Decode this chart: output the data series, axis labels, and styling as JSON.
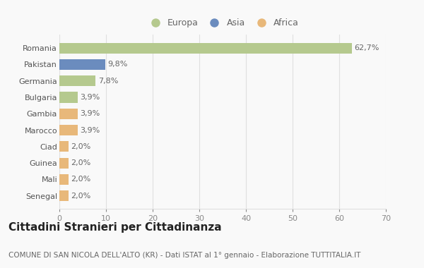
{
  "categories": [
    "Romania",
    "Pakistan",
    "Germania",
    "Bulgaria",
    "Gambia",
    "Marocco",
    "Ciad",
    "Guinea",
    "Mali",
    "Senegal"
  ],
  "values": [
    62.7,
    9.8,
    7.8,
    3.9,
    3.9,
    3.9,
    2.0,
    2.0,
    2.0,
    2.0
  ],
  "labels": [
    "62,7%",
    "9,8%",
    "7,8%",
    "3,9%",
    "3,9%",
    "3,9%",
    "2,0%",
    "2,0%",
    "2,0%",
    "2,0%"
  ],
  "continents": [
    "Europa",
    "Asia",
    "Europa",
    "Europa",
    "Africa",
    "Africa",
    "Africa",
    "Africa",
    "Africa",
    "Africa"
  ],
  "colors": {
    "Europa": "#b5c98e",
    "Asia": "#6b8cbe",
    "Africa": "#e8b87a"
  },
  "xlim": [
    0,
    70
  ],
  "xticks": [
    0,
    10,
    20,
    30,
    40,
    50,
    60,
    70
  ],
  "title": "Cittadini Stranieri per Cittadinanza",
  "subtitle": "COMUNE DI SAN NICOLA DELL'ALTO (KR) - Dati ISTAT al 1° gennaio - Elaborazione TUTTITALIA.IT",
  "background_color": "#f9f9f9",
  "grid_color": "#e0e0e0",
  "bar_height": 0.65,
  "title_fontsize": 11,
  "subtitle_fontsize": 7.5,
  "tick_fontsize": 8,
  "label_fontsize": 8,
  "legend_fontsize": 9
}
